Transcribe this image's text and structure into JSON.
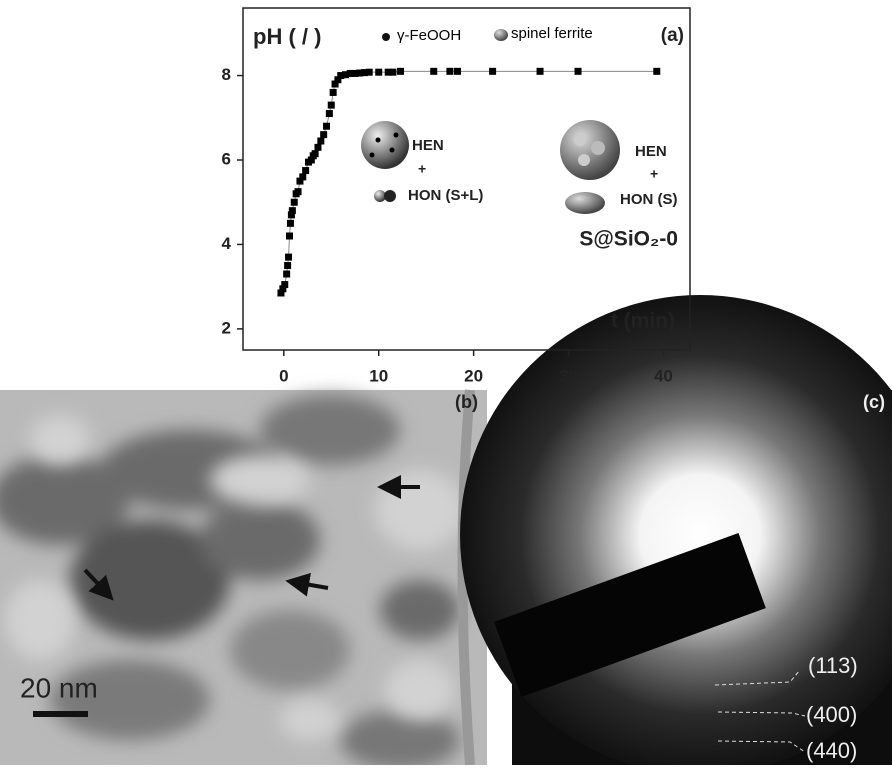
{
  "chart_data": {
    "type": "line",
    "marker": "square",
    "title": "(a)",
    "ylabel": "pH ( / )",
    "xlabel": "t (min)",
    "x": [
      -0.3,
      -0.1,
      0.1,
      0.3,
      0.4,
      0.5,
      0.6,
      0.7,
      0.8,
      0.9,
      1.1,
      1.3,
      1.5,
      1.7,
      2.0,
      2.3,
      2.6,
      2.9,
      3.1,
      3.3,
      3.6,
      3.9,
      4.2,
      4.5,
      4.8,
      5.0,
      5.2,
      5.4,
      5.7,
      6.0,
      6.5,
      7.0,
      7.5,
      8.0,
      8.5,
      9.0,
      10.0,
      11.0,
      11.5,
      12.3,
      15.8,
      17.5,
      18.3,
      22.0,
      27.0,
      31.0,
      39.3
    ],
    "series": [
      {
        "color": "#000000",
        "line_color": "#888888",
        "values": [
          2.85,
          2.95,
          3.05,
          3.3,
          3.5,
          3.7,
          4.2,
          4.5,
          4.7,
          4.8,
          5.0,
          5.2,
          5.25,
          5.5,
          5.6,
          5.75,
          5.95,
          6.0,
          6.1,
          6.15,
          6.3,
          6.45,
          6.6,
          6.8,
          7.1,
          7.3,
          7.6,
          7.8,
          7.9,
          8.0,
          8.02,
          8.05,
          8.05,
          8.06,
          8.07,
          8.08,
          8.08,
          8.08,
          8.08,
          8.1,
          8.1,
          8.1,
          8.1,
          8.1,
          8.1,
          8.1,
          8.1
        ]
      }
    ],
    "xlim": [
      -4.3,
      42.8
    ],
    "ylim": [
      1.5,
      9.6
    ],
    "xticks": [
      0,
      10,
      20,
      30,
      40
    ],
    "yticks": [
      2,
      4,
      6,
      8
    ],
    "annotations": {
      "legend_dot": "γ-FeOOH",
      "legend_sphere": "spinel ferrite",
      "left_top": "HEN",
      "left_plus": "+",
      "left_bottom": "HON (S+L)",
      "right_top": "HEN",
      "right_plus": "+",
      "right_bottom": "HON (S)",
      "sample": "S@SiO₂-0"
    }
  },
  "panel_b": {
    "label": "(b)",
    "scale_bar": "20 nm"
  },
  "panel_c": {
    "label": "(c)",
    "rings": [
      "(113)",
      "(400)",
      "(440)"
    ]
  }
}
